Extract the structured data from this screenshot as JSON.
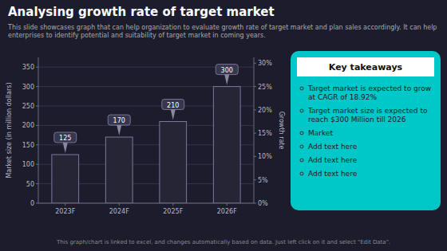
{
  "chart_data": {
    "type": "bar",
    "title": "Analysing growth rate of target market",
    "subtitle": "This slide showcases graph that can help organization to evaluate growth rate of target market and plan sales accordingly. It can help enterprises to identify potential and suitability of target market in coming years.",
    "categories": [
      "2023F",
      "2024F",
      "2025F",
      "2026F"
    ],
    "values": [
      125,
      170,
      210,
      300
    ],
    "color": "#252535",
    "ylabel": "Market size (in million dollars)",
    "y2label": "Growth rate",
    "ylim": [
      0,
      375
    ],
    "yticks": [
      0,
      50,
      100,
      150,
      200,
      250,
      300,
      350
    ],
    "y2lim": [
      0,
      31.25
    ],
    "y2ticks": [
      {
        "value": 0,
        "label": "0%"
      },
      {
        "value": 5,
        "label": "5%"
      },
      {
        "value": 10,
        "label": "10%"
      },
      {
        "value": 15,
        "label": "15%"
      },
      {
        "value": 20,
        "label": "20%"
      },
      {
        "value": 25,
        "label": "25%"
      },
      {
        "value": 30,
        "label": "30%"
      }
    ],
    "grid": true,
    "data_labels": true,
    "annotations": [
      "Key takeaways",
      "Target market is expected to grow at CAGR of 18.92%",
      "Target market size is expected to reach $300 Million till 2026",
      "Market",
      "Add text here",
      "Add text here",
      "Add text here",
      "This graph/chart is linked to excel, and changes automatically based on data. Just left click on it and select \"Edit Data\"."
    ]
  }
}
